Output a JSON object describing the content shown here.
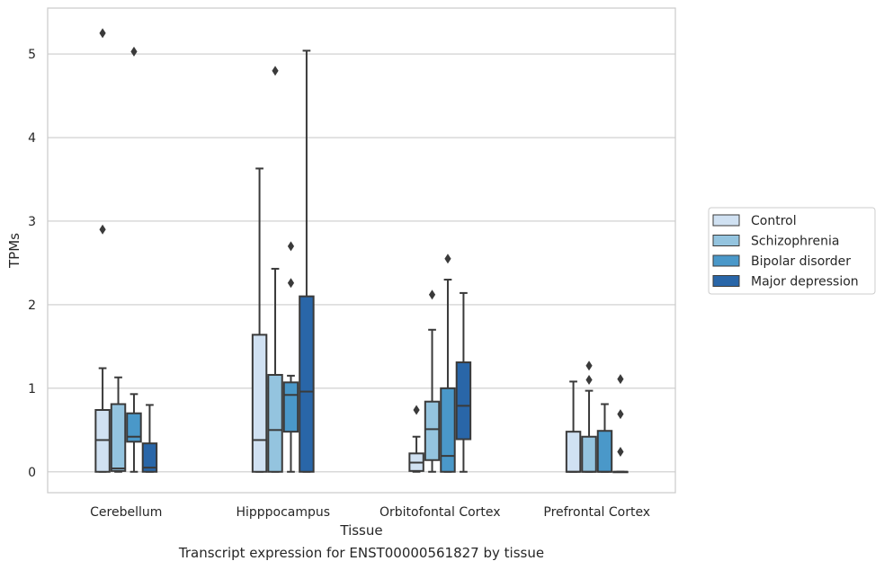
{
  "caption": "Transcript expression for ENST00000561827 by tissue",
  "chart_data": {
    "type": "box",
    "xlabel": "Tissue",
    "ylabel": "TPMs",
    "ylim": [
      -0.25,
      5.55
    ],
    "yticks": [
      0,
      1,
      2,
      3,
      4,
      5
    ],
    "grid": true,
    "legend_position": "right",
    "categories": [
      "Cerebellum",
      "Hipppocampus",
      "Orbitofontal Cortex",
      "Prefrontal Cortex"
    ],
    "series": [
      {
        "name": "Control",
        "color": "#d0e1f2",
        "boxes": [
          {
            "min": 0.0,
            "q1": 0.0,
            "median": 0.38,
            "q3": 0.74,
            "max": 1.24,
            "outliers": [
              2.9,
              5.25
            ]
          },
          {
            "min": 0.0,
            "q1": 0.0,
            "median": 0.38,
            "q3": 1.64,
            "max": 3.63,
            "outliers": []
          },
          {
            "min": 0.0,
            "q1": 0.01,
            "median": 0.11,
            "q3": 0.22,
            "max": 0.42,
            "outliers": [
              0.74
            ]
          },
          {
            "min": 0.0,
            "q1": 0.0,
            "median": 0.0,
            "q3": 0.48,
            "max": 1.08,
            "outliers": []
          }
        ]
      },
      {
        "name": "Schizophrenia",
        "color": "#94c4df",
        "boxes": [
          {
            "min": 0.0,
            "q1": 0.01,
            "median": 0.04,
            "q3": 0.81,
            "max": 1.13,
            "outliers": []
          },
          {
            "min": 0.0,
            "q1": 0.0,
            "median": 0.5,
            "q3": 1.16,
            "max": 2.43,
            "outliers": [
              4.8
            ]
          },
          {
            "min": 0.0,
            "q1": 0.14,
            "median": 0.51,
            "q3": 0.84,
            "max": 1.7,
            "outliers": [
              2.12
            ]
          },
          {
            "min": 0.0,
            "q1": 0.0,
            "median": 0.0,
            "q3": 0.42,
            "max": 0.97,
            "outliers": [
              1.1,
              1.27
            ]
          }
        ]
      },
      {
        "name": "Bipolar disorder",
        "color": "#4a98c9",
        "boxes": [
          {
            "min": 0.0,
            "q1": 0.36,
            "median": 0.42,
            "q3": 0.7,
            "max": 0.93,
            "outliers": [
              5.03
            ]
          },
          {
            "min": 0.0,
            "q1": 0.48,
            "median": 0.92,
            "q3": 1.07,
            "max": 1.15,
            "outliers": [
              2.26,
              2.7
            ]
          },
          {
            "min": 0.0,
            "q1": 0.0,
            "median": 0.19,
            "q3": 1.0,
            "max": 2.3,
            "outliers": [
              2.55
            ]
          },
          {
            "min": 0.0,
            "q1": 0.0,
            "median": 0.0,
            "q3": 0.49,
            "max": 0.81,
            "outliers": []
          }
        ]
      },
      {
        "name": "Major depression",
        "color": "#2966a8",
        "boxes": [
          {
            "min": 0.0,
            "q1": 0.0,
            "median": 0.05,
            "q3": 0.34,
            "max": 0.8,
            "outliers": []
          },
          {
            "min": 0.0,
            "q1": 0.0,
            "median": 0.96,
            "q3": 2.1,
            "max": 5.04,
            "outliers": []
          },
          {
            "min": 0.0,
            "q1": 0.39,
            "median": 0.79,
            "q3": 1.31,
            "max": 2.14,
            "outliers": []
          },
          {
            "min": 0.0,
            "q1": 0.0,
            "median": 0.0,
            "q3": 0.0,
            "max": 0.0,
            "outliers": [
              0.24,
              0.69,
              1.11
            ]
          }
        ]
      }
    ]
  }
}
